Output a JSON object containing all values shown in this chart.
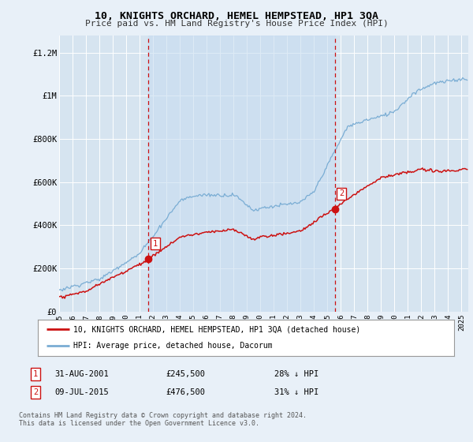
{
  "title": "10, KNIGHTS ORCHARD, HEMEL HEMPSTEAD, HP1 3QA",
  "subtitle": "Price paid vs. HM Land Registry's House Price Index (HPI)",
  "ylabel_ticks": [
    "£0",
    "£200K",
    "£400K",
    "£600K",
    "£800K",
    "£1M",
    "£1.2M"
  ],
  "ytick_values": [
    0,
    200000,
    400000,
    600000,
    800000,
    1000000,
    1200000
  ],
  "ylim": [
    0,
    1280000
  ],
  "xlim_start": 1995.0,
  "xlim_end": 2025.5,
  "background_color": "#e8f0f8",
  "plot_bg_color": "#d6e4f0",
  "shade_color": "#c8ddf0",
  "grid_color": "#ffffff",
  "hpi_color": "#7aadd4",
  "price_color": "#cc1111",
  "marker1_x": 2001.667,
  "marker1_y": 245500,
  "marker1_label": "1",
  "marker2_x": 2015.54,
  "marker2_y": 476500,
  "marker2_label": "2",
  "vline1_x": 2001.667,
  "vline2_x": 2015.54,
  "legend_line1": "10, KNIGHTS ORCHARD, HEMEL HEMPSTEAD, HP1 3QA (detached house)",
  "legend_line2": "HPI: Average price, detached house, Dacorum",
  "ann1_num": "1",
  "ann1_date": "31-AUG-2001",
  "ann1_price": "£245,500",
  "ann1_hpi": "28% ↓ HPI",
  "ann2_num": "2",
  "ann2_date": "09-JUL-2015",
  "ann2_price": "£476,500",
  "ann2_hpi": "31% ↓ HPI",
  "footer": "Contains HM Land Registry data © Crown copyright and database right 2024.\nThis data is licensed under the Open Government Licence v3.0.",
  "xticks": [
    1995,
    1996,
    1997,
    1998,
    1999,
    2000,
    2001,
    2002,
    2003,
    2004,
    2005,
    2006,
    2007,
    2008,
    2009,
    2010,
    2011,
    2012,
    2013,
    2014,
    2015,
    2016,
    2017,
    2018,
    2019,
    2020,
    2021,
    2022,
    2023,
    2024,
    2025
  ]
}
